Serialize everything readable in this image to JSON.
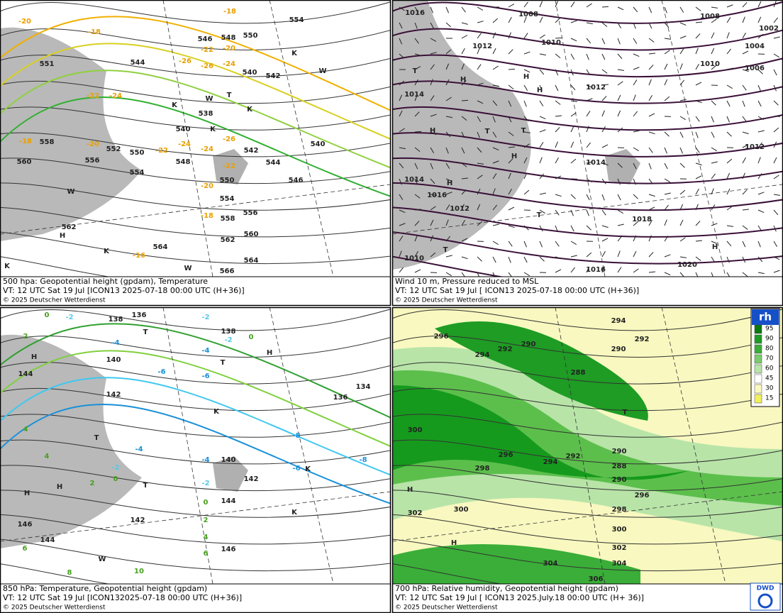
{
  "panels": [
    {
      "caption": [
        "500 hpa: Geopotential height (gpdam), Temperature",
        "VT: 12 UTC Sat  19 Jul [ICON13 2025-07-18 00:00 UTC  (H+36)]",
        "© 2025 Deutscher Wetterdienst"
      ],
      "heights": [
        "554",
        "550",
        "548",
        "546",
        "544",
        "542",
        "540",
        "538",
        "540",
        "542",
        "544",
        "546",
        "548",
        "550",
        "552",
        "554",
        "556",
        "558",
        "560",
        "562",
        "564",
        "566",
        "564",
        "562",
        "560",
        "558",
        "556",
        "554",
        "550",
        "540",
        "551"
      ],
      "temps": [
        "-20",
        "-18",
        "-22",
        "-20",
        "-26",
        "-26",
        "-24",
        "-22",
        "-24",
        "-20",
        "-18",
        "-22",
        "-24",
        "-24",
        "-26",
        "-22",
        "-20",
        "-18",
        "-16",
        "-18"
      ],
      "symbols": [
        "T",
        "W",
        "K",
        "K",
        "K",
        "W",
        "K",
        "H",
        "W",
        "K",
        "K",
        "W"
      ]
    },
    {
      "caption": [
        "Wind 10 m, Pressure reduced to MSL",
        "VT: 12 UTC Sat  19 Jul [ ICON13 2025-07-18 00:00 UTC (H+36)]",
        "© 2025 Deutscher Wetterdienst"
      ],
      "pressures": [
        "1016",
        "1008",
        "1010",
        "1012",
        "1012",
        "1010",
        "1008",
        "1004",
        "1006",
        "1002",
        "1014",
        "1014",
        "1012",
        "1014",
        "1016",
        "1012",
        "1018",
        "1010",
        "1016",
        "1020"
      ],
      "symbols": [
        "H",
        "H",
        "H",
        "T",
        "T",
        "H",
        "T",
        "H",
        "H",
        "T",
        "H",
        "T"
      ]
    },
    {
      "caption": [
        "850 hPa:  Temperature, Geopotential height (gpdam)",
        "VT: 12 UTC Sat  19 Jul [ICON132025-07-18 00:00 UTC (H+36)]",
        "© 2025 Deutscher Wetterdienst"
      ],
      "heights": [
        "136",
        "138",
        "138",
        "140",
        "142",
        "136",
        "134",
        "144",
        "140",
        "142",
        "144",
        "142",
        "146",
        "146",
        "144"
      ],
      "temps": [
        "-2",
        "-2",
        "0",
        "0",
        "2",
        "-2",
        "-4",
        "-4",
        "-6",
        "-6",
        "4",
        "4",
        "2",
        "0",
        "-2",
        "-4",
        "-4",
        "-2",
        "0",
        "2",
        "4",
        "6",
        "6",
        "8",
        "10",
        "-6",
        "-8",
        "-8"
      ],
      "symbols": [
        "H",
        "T",
        "T",
        "K",
        "K",
        "H",
        "T",
        "H",
        "T",
        "H",
        "K",
        "W"
      ]
    },
    {
      "caption": [
        "700 hPa:  Relative humidity, Geopotential height (gpdam)",
        "VT: 12 UTC Sat  19 Jul [ ICON13  2025.July.18 00:00 UTC (H+ 36)]",
        "© 2025 Deutscher Wetterdienst"
      ],
      "heights": [
        "294",
        "292",
        "290",
        "296",
        "294",
        "292",
        "290",
        "288",
        "300",
        "296",
        "294",
        "292",
        "290",
        "288",
        "290",
        "296",
        "298",
        "300",
        "302",
        "304",
        "306",
        "304",
        "302",
        "300",
        "298"
      ],
      "symbols": [
        "T",
        "H",
        "H"
      ],
      "legend": {
        "title": "rh",
        "levels": [
          "95",
          "90",
          "80",
          "70",
          "60",
          "45",
          "30",
          "15"
        ]
      },
      "logo": "DWD"
    }
  ]
}
